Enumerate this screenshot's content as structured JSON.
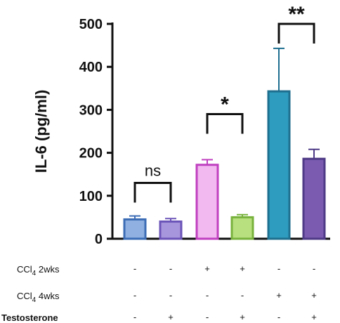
{
  "chart_data": {
    "type": "bar",
    "title": "",
    "xlabel": "",
    "ylabel": "IL-6 (pg/ml)",
    "ylim": [
      0,
      500
    ],
    "yticks": [
      "0",
      "100",
      "200",
      "300",
      "400",
      "500"
    ],
    "values": [
      45,
      40,
      172,
      50,
      343,
      186
    ],
    "errors": [
      8,
      7,
      12,
      6,
      100,
      22
    ],
    "colors": {
      "fills": [
        "#8fb0e0",
        "#a896dc",
        "#f2b8f0",
        "#b8e07f",
        "#2e9cbf",
        "#7a5bb0"
      ],
      "strokes": [
        "#3c6db5",
        "#6c54b8",
        "#c040c0",
        "#78b23c",
        "#1f6f8f",
        "#4e3a86"
      ]
    },
    "comparisons": [
      {
        "bars": [
          0,
          1
        ],
        "label": "ns",
        "height": 130
      },
      {
        "bars": [
          2,
          3
        ],
        "label": "*",
        "height": 290
      },
      {
        "bars": [
          4,
          5
        ],
        "label": "**",
        "height": 500
      }
    ],
    "conditions": [
      {
        "label_prefix": "CCl",
        "label_sub": "4",
        "label_suffix": " 2wks",
        "signs": [
          "-",
          "-",
          "+",
          "+",
          "-",
          "-"
        ]
      },
      {
        "label_prefix": "CCl",
        "label_sub": "4",
        "label_suffix": " 4wks",
        "signs": [
          "-",
          "-",
          "-",
          "-",
          "+",
          "+"
        ]
      },
      {
        "label_prefix": "Testosterone",
        "label_sub": "",
        "label_suffix": "",
        "signs": [
          "-",
          "+",
          "-",
          "+",
          "-",
          "+"
        ]
      }
    ]
  }
}
